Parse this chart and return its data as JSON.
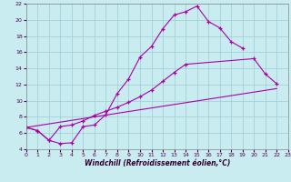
{
  "xlabel": "Windchill (Refroidissement éolien,°C)",
  "xlim": [
    0,
    23
  ],
  "ylim": [
    4,
    22
  ],
  "yticks": [
    4,
    6,
    8,
    10,
    12,
    14,
    16,
    18,
    20,
    22
  ],
  "xticks": [
    0,
    1,
    2,
    3,
    4,
    5,
    6,
    7,
    8,
    9,
    10,
    11,
    12,
    13,
    14,
    15,
    16,
    17,
    18,
    19,
    20,
    21,
    22,
    23
  ],
  "bg_color": "#c8ecf0",
  "grid_color": "#9eccd4",
  "line_color": "#aa00aa",
  "curve1_x": [
    0,
    1,
    2,
    3,
    4,
    5,
    6,
    7,
    8,
    9,
    10,
    11,
    12,
    13,
    14,
    15,
    16,
    17,
    18,
    19
  ],
  "curve1_y": [
    6.7,
    6.3,
    5.1,
    4.7,
    4.8,
    6.8,
    7.0,
    8.3,
    10.9,
    12.7,
    15.4,
    16.7,
    18.9,
    20.6,
    21.0,
    21.7,
    19.8,
    19.0,
    17.3,
    16.5
  ],
  "curve2_x": [
    0,
    1,
    2,
    3,
    4,
    5,
    6,
    7,
    8,
    9,
    10,
    11,
    12,
    13,
    14,
    20,
    21,
    22
  ],
  "curve2_y": [
    6.7,
    6.3,
    5.1,
    6.8,
    7.0,
    7.5,
    8.2,
    8.7,
    9.2,
    9.8,
    10.5,
    11.3,
    12.4,
    13.5,
    14.5,
    15.2,
    13.3,
    12.1
  ],
  "curve3_x": [
    0,
    22
  ],
  "curve3_y": [
    6.7,
    11.5
  ]
}
